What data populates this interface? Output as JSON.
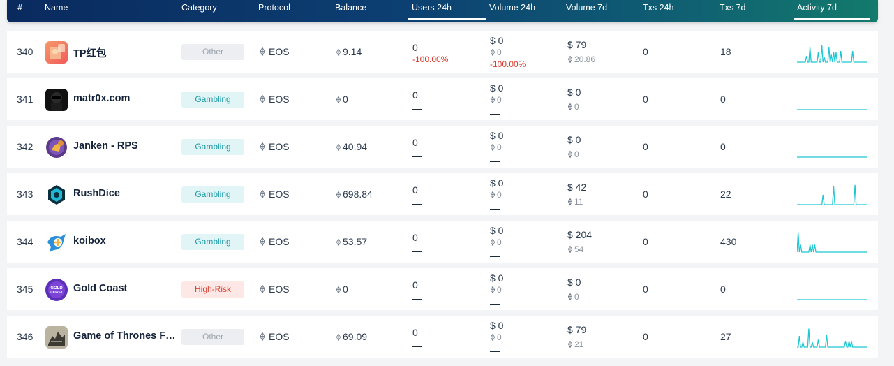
{
  "header": {
    "rank": "#",
    "name": "Name",
    "category": "Category",
    "protocol": "Protocol",
    "balance": "Balance",
    "users24h": "Users 24h",
    "volume24h": "Volume 24h",
    "volume7d": "Volume 7d",
    "txs24h": "Txs 24h",
    "txs7d": "Txs 7d",
    "activity7d": "Activity 7d"
  },
  "colors": {
    "header_start": "#0a2a5e",
    "header_end": "#137a6c",
    "spark": "#1fc7d4",
    "negative": "#d93a2b"
  },
  "rows": [
    {
      "rank": "340",
      "name": "TP红包",
      "icon": "tp-redpacket-icon",
      "category": "Other",
      "category_type": "other",
      "protocol": "EOS",
      "balance": "9.14",
      "users": "0",
      "users_change": "-100.00%",
      "vol24_usd": "$ 0",
      "vol24_eos": "0",
      "vol24_change": "-100.00%",
      "vol7_usd": "$ 79",
      "vol7_eos": "20.86",
      "txs24": "0",
      "txs7": "18",
      "activity": [
        0,
        0,
        0,
        0,
        0,
        0,
        0,
        0,
        5,
        0,
        0,
        12,
        0,
        0,
        0,
        0,
        0,
        0,
        8,
        0,
        0,
        14,
        0,
        4,
        0,
        0,
        0,
        12,
        0,
        6,
        0,
        8,
        0,
        8,
        0,
        0,
        0,
        9,
        0,
        0,
        0,
        0,
        0,
        0,
        0,
        0,
        0,
        9,
        0,
        0,
        0,
        0,
        0,
        0,
        0,
        0,
        0,
        0,
        0,
        0
      ]
    },
    {
      "rank": "341",
      "name": "matr0x.com",
      "icon": "matr0x-icon",
      "category": "Gambling",
      "category_type": "gambling",
      "protocol": "EOS",
      "balance": "0",
      "users": "0",
      "users_change": "",
      "vol24_usd": "$ 0",
      "vol24_eos": "0",
      "vol24_change": "",
      "vol7_usd": "$ 0",
      "vol7_eos": "0",
      "txs24": "0",
      "txs7": "0",
      "activity": []
    },
    {
      "rank": "342",
      "name": "Janken - RPS",
      "icon": "janken-icon",
      "category": "Gambling",
      "category_type": "gambling",
      "protocol": "EOS",
      "balance": "40.94",
      "users": "0",
      "users_change": "",
      "vol24_usd": "$ 0",
      "vol24_eos": "0",
      "vol24_change": "",
      "vol7_usd": "$ 0",
      "vol7_eos": "0",
      "txs24": "0",
      "txs7": "0",
      "activity": []
    },
    {
      "rank": "343",
      "name": "RushDice",
      "icon": "rushdice-icon",
      "category": "Gambling",
      "category_type": "gambling",
      "protocol": "EOS",
      "balance": "698.84",
      "users": "0",
      "users_change": "",
      "vol24_usd": "$ 0",
      "vol24_eos": "0",
      "vol24_change": "",
      "vol7_usd": "$ 42",
      "vol7_eos": "11",
      "txs24": "0",
      "txs7": "22",
      "activity": [
        0,
        0,
        0,
        0,
        0,
        0,
        0,
        0,
        0,
        0,
        0,
        0,
        0,
        0,
        0,
        0,
        0,
        0,
        0,
        0,
        0,
        0,
        8,
        0,
        0,
        0,
        0,
        0,
        0,
        0,
        0,
        15,
        0,
        0,
        0,
        0,
        0,
        0,
        0,
        0,
        0,
        0,
        0,
        0,
        0,
        0,
        0,
        0,
        0,
        16,
        0,
        0,
        0,
        0,
        0,
        0,
        0,
        0,
        0,
        0
      ]
    },
    {
      "rank": "344",
      "name": "koibox",
      "icon": "koibox-icon",
      "category": "Gambling",
      "category_type": "gambling",
      "protocol": "EOS",
      "balance": "53.57",
      "users": "0",
      "users_change": "",
      "vol24_usd": "$ 0",
      "vol24_eos": "0",
      "vol24_change": "",
      "vol7_usd": "$ 204",
      "vol7_eos": "54",
      "txs24": "0",
      "txs7": "430",
      "activity": [
        0,
        16,
        0,
        6,
        0,
        0,
        0,
        0,
        0,
        0,
        0,
        6,
        0,
        6,
        0,
        6,
        0,
        0,
        0,
        0,
        0,
        0,
        0,
        0,
        0,
        0,
        0,
        0,
        0,
        0,
        0,
        0,
        0,
        0,
        0,
        0,
        0,
        0,
        0,
        0,
        0,
        0,
        0,
        0,
        0,
        0,
        0,
        0,
        0,
        0,
        0,
        0,
        0,
        0,
        0,
        0,
        0,
        0,
        0,
        0
      ]
    },
    {
      "rank": "345",
      "name": "Gold Coast",
      "icon": "gold-coast-icon",
      "category": "High-Risk",
      "category_type": "highrisk",
      "protocol": "EOS",
      "balance": "0",
      "users": "0",
      "users_change": "",
      "vol24_usd": "$ 0",
      "vol24_eos": "0",
      "vol24_change": "",
      "vol7_usd": "$ 0",
      "vol7_eos": "0",
      "txs24": "0",
      "txs7": "0",
      "activity": []
    },
    {
      "rank": "346",
      "name": "Game of Thrones Fi...",
      "icon": "game-of-thrones-icon",
      "category": "Other",
      "category_type": "other",
      "protocol": "EOS",
      "balance": "69.09",
      "users": "0",
      "users_change": "",
      "vol24_usd": "$ 0",
      "vol24_eos": "0",
      "vol24_change": "",
      "vol7_usd": "$ 79",
      "vol7_eos": "21",
      "txs24": "0",
      "txs7": "27",
      "activity": [
        0,
        0,
        9,
        0,
        0,
        4,
        0,
        0,
        0,
        0,
        15,
        0,
        0,
        4,
        0,
        0,
        0,
        0,
        6,
        0,
        0,
        0,
        0,
        0,
        0,
        10,
        0,
        0,
        0,
        0,
        0,
        0,
        0,
        0,
        0,
        0,
        0,
        0,
        0,
        0,
        0,
        5,
        0,
        0,
        5,
        0,
        5,
        0,
        0,
        0,
        0,
        0,
        0,
        0,
        0,
        0,
        0,
        0,
        0,
        0
      ]
    }
  ]
}
